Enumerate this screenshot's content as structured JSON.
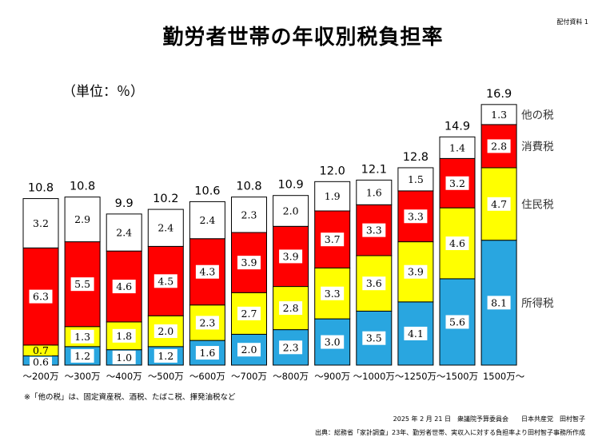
{
  "header": {
    "doc_label": "配付資料 1",
    "title": "勤労者世帯の年収別税負担率",
    "unit": "（単位：％）"
  },
  "footer": {
    "note": "※「他の税」は、固定資産税、酒税、たばこ税、揮発油税など",
    "date_line": "2025 年 2 月 21 日　衆議院予算委員会　　日本共産党　田村智子",
    "source_line": "出典：総務省「家計調査」23年、勤労者世帯、実収入に対する負担率より田村智子事務所作成"
  },
  "chart_data": {
    "type": "bar",
    "stacked": true,
    "title": "勤労者世帯の年収別税負担率",
    "unit": "（単位：％）",
    "ylim": [
      0,
      17
    ],
    "grid": false,
    "legend_placement": "right (labels beside last bar)",
    "categories": [
      "～200万",
      "～300万",
      "～400万",
      "～500万",
      "～600万",
      "～700万",
      "～800万",
      "～900万",
      "～1000万",
      "～1250万",
      "～1500万",
      "1500万～"
    ],
    "totals": [
      "10.8",
      "10.8",
      "9.9",
      "10.2",
      "10.6",
      "10.8",
      "10.9",
      "12.0",
      "12.1",
      "12.8",
      "14.9",
      "16.9"
    ],
    "series": [
      {
        "name": "所得税",
        "color": "#29a6e0",
        "values": [
          0.6,
          1.2,
          1.0,
          1.2,
          1.6,
          2.0,
          2.3,
          3.0,
          3.5,
          4.1,
          5.6,
          8.1
        ],
        "labels": [
          "0.6",
          "1.2",
          "1.0",
          "1.2",
          "1.6",
          "2.0",
          "2.3",
          "3.0",
          "3.5",
          "4.1",
          "5.6",
          "8.1"
        ]
      },
      {
        "name": "住民税",
        "color": "#ffff00",
        "values": [
          0.7,
          1.3,
          1.8,
          2.0,
          2.3,
          2.7,
          2.8,
          3.3,
          3.6,
          3.9,
          4.6,
          4.7
        ],
        "labels": [
          "0.7",
          "1.3",
          "1.8",
          "2.0",
          "2.3",
          "2.7",
          "2.8",
          "3.3",
          "3.6",
          "3.9",
          "4.6",
          "4.7"
        ]
      },
      {
        "name": "消費税",
        "color": "#ff0000",
        "values": [
          6.3,
          5.5,
          4.6,
          4.5,
          4.3,
          3.9,
          3.9,
          3.7,
          3.3,
          3.3,
          3.2,
          2.8
        ],
        "labels": [
          "6.3",
          "5.5",
          "4.6",
          "4.5",
          "4.3",
          "3.9",
          "3.9",
          "3.7",
          "3.3",
          "3.3",
          "3.2",
          "2.8"
        ]
      },
      {
        "name": "他の税",
        "color": "#ffffff",
        "values": [
          3.2,
          2.9,
          2.4,
          2.4,
          2.4,
          2.3,
          2.0,
          1.9,
          1.6,
          1.5,
          1.4,
          1.3
        ],
        "labels": [
          "3.2",
          "2.9",
          "2.4",
          "2.4",
          "2.4",
          "2.3",
          "2.0",
          "1.9",
          "1.6",
          "1.5",
          "1.4",
          "1.3"
        ]
      }
    ]
  }
}
